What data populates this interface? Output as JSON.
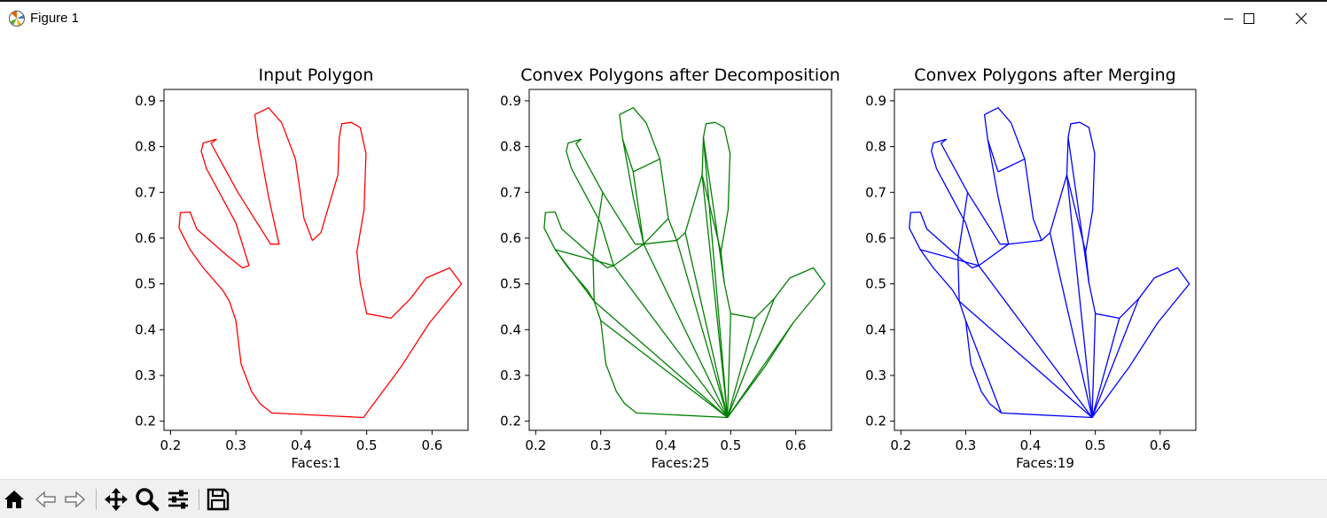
{
  "window": {
    "title": "Figure 1"
  },
  "icons": {
    "app": "matplotlib-icon",
    "minimize": "minimize-icon",
    "maximize": "maximize-icon",
    "close": "close-icon",
    "home": "home-icon",
    "back": "back-arrow-icon",
    "forward": "forward-arrow-icon",
    "pan": "pan-icon",
    "zoom": "zoom-icon",
    "configure": "configure-subplots-icon",
    "save": "save-icon"
  },
  "chart_data": [
    {
      "type": "polygon",
      "title": "Input Polygon",
      "xlabel": "Faces:1",
      "xlim": [
        0.19,
        0.655
      ],
      "ylim": [
        0.18,
        0.925
      ],
      "xticks": [
        "0.2",
        "0.3",
        "0.4",
        "0.5",
        "0.6"
      ],
      "yticks": [
        "0.2",
        "0.3",
        "0.4",
        "0.5",
        "0.6",
        "0.7",
        "0.8",
        "0.9"
      ],
      "color": "#ff0000",
      "outline": [
        [
          0.355,
          0.218
        ],
        [
          0.495,
          0.208
        ],
        [
          0.553,
          0.32
        ],
        [
          0.596,
          0.415
        ],
        [
          0.645,
          0.5
        ],
        [
          0.627,
          0.535
        ],
        [
          0.591,
          0.513
        ],
        [
          0.567,
          0.468
        ],
        [
          0.537,
          0.425
        ],
        [
          0.5,
          0.435
        ],
        [
          0.49,
          0.503
        ],
        [
          0.485,
          0.57
        ],
        [
          0.496,
          0.662
        ],
        [
          0.499,
          0.785
        ],
        [
          0.49,
          0.842
        ],
        [
          0.476,
          0.853
        ],
        [
          0.462,
          0.85
        ],
        [
          0.458,
          0.82
        ],
        [
          0.456,
          0.738
        ],
        [
          0.43,
          0.612
        ],
        [
          0.417,
          0.595
        ],
        [
          0.404,
          0.643
        ],
        [
          0.391,
          0.773
        ],
        [
          0.37,
          0.852
        ],
        [
          0.35,
          0.885
        ],
        [
          0.329,
          0.87
        ],
        [
          0.334,
          0.815
        ],
        [
          0.35,
          0.69
        ],
        [
          0.366,
          0.587
        ],
        [
          0.353,
          0.587
        ],
        [
          0.303,
          0.7
        ],
        [
          0.262,
          0.807
        ],
        [
          0.27,
          0.816
        ],
        [
          0.25,
          0.808
        ],
        [
          0.247,
          0.79
        ],
        [
          0.255,
          0.752
        ],
        [
          0.3,
          0.633
        ],
        [
          0.32,
          0.54
        ],
        [
          0.31,
          0.535
        ],
        [
          0.288,
          0.56
        ],
        [
          0.24,
          0.62
        ],
        [
          0.23,
          0.657
        ],
        [
          0.215,
          0.656
        ],
        [
          0.213,
          0.622
        ],
        [
          0.23,
          0.575
        ],
        [
          0.25,
          0.535
        ],
        [
          0.28,
          0.486
        ],
        [
          0.29,
          0.462
        ],
        [
          0.3,
          0.42
        ],
        [
          0.308,
          0.325
        ],
        [
          0.324,
          0.265
        ],
        [
          0.337,
          0.238
        ]
      ],
      "edges": []
    },
    {
      "type": "polygon",
      "title": "Convex Polygons after Decomposition",
      "xlabel": "Faces:25",
      "xlim": [
        0.19,
        0.655
      ],
      "ylim": [
        0.18,
        0.925
      ],
      "xticks": [
        "0.2",
        "0.3",
        "0.4",
        "0.5",
        "0.6"
      ],
      "yticks": [
        "0.2",
        "0.3",
        "0.4",
        "0.5",
        "0.6",
        "0.7",
        "0.8",
        "0.9"
      ],
      "color": "#008000",
      "outline": [
        [
          0.355,
          0.218
        ],
        [
          0.495,
          0.208
        ],
        [
          0.553,
          0.32
        ],
        [
          0.596,
          0.415
        ],
        [
          0.645,
          0.5
        ],
        [
          0.627,
          0.535
        ],
        [
          0.591,
          0.513
        ],
        [
          0.567,
          0.468
        ],
        [
          0.537,
          0.425
        ],
        [
          0.5,
          0.435
        ],
        [
          0.49,
          0.503
        ],
        [
          0.485,
          0.57
        ],
        [
          0.496,
          0.662
        ],
        [
          0.499,
          0.785
        ],
        [
          0.49,
          0.842
        ],
        [
          0.476,
          0.853
        ],
        [
          0.462,
          0.85
        ],
        [
          0.458,
          0.82
        ],
        [
          0.456,
          0.738
        ],
        [
          0.43,
          0.612
        ],
        [
          0.417,
          0.595
        ],
        [
          0.404,
          0.643
        ],
        [
          0.391,
          0.773
        ],
        [
          0.37,
          0.852
        ],
        [
          0.35,
          0.885
        ],
        [
          0.329,
          0.87
        ],
        [
          0.334,
          0.815
        ],
        [
          0.35,
          0.69
        ],
        [
          0.366,
          0.587
        ],
        [
          0.353,
          0.587
        ],
        [
          0.303,
          0.7
        ],
        [
          0.262,
          0.807
        ],
        [
          0.27,
          0.816
        ],
        [
          0.25,
          0.808
        ],
        [
          0.247,
          0.79
        ],
        [
          0.255,
          0.752
        ],
        [
          0.3,
          0.633
        ],
        [
          0.32,
          0.54
        ],
        [
          0.31,
          0.535
        ],
        [
          0.288,
          0.56
        ],
        [
          0.24,
          0.62
        ],
        [
          0.23,
          0.657
        ],
        [
          0.215,
          0.656
        ],
        [
          0.213,
          0.622
        ],
        [
          0.23,
          0.575
        ],
        [
          0.25,
          0.535
        ],
        [
          0.28,
          0.486
        ],
        [
          0.29,
          0.462
        ],
        [
          0.3,
          0.42
        ],
        [
          0.308,
          0.325
        ],
        [
          0.324,
          0.265
        ],
        [
          0.337,
          0.238
        ]
      ],
      "edges": [
        [
          [
            0.29,
            0.462
          ],
          [
            0.495,
            0.208
          ]
        ],
        [
          [
            0.3,
            0.42
          ],
          [
            0.495,
            0.208
          ]
        ],
        [
          [
            0.32,
            0.54
          ],
          [
            0.495,
            0.208
          ]
        ],
        [
          [
            0.366,
            0.587
          ],
          [
            0.495,
            0.208
          ]
        ],
        [
          [
            0.417,
            0.595
          ],
          [
            0.495,
            0.208
          ]
        ],
        [
          [
            0.43,
            0.612
          ],
          [
            0.495,
            0.208
          ]
        ],
        [
          [
            0.456,
            0.738
          ],
          [
            0.495,
            0.208
          ]
        ],
        [
          [
            0.458,
            0.82
          ],
          [
            0.495,
            0.208
          ]
        ],
        [
          [
            0.5,
            0.435
          ],
          [
            0.495,
            0.208
          ]
        ],
        [
          [
            0.537,
            0.425
          ],
          [
            0.495,
            0.208
          ]
        ],
        [
          [
            0.567,
            0.468
          ],
          [
            0.495,
            0.208
          ]
        ],
        [
          [
            0.596,
            0.415
          ],
          [
            0.495,
            0.208
          ]
        ],
        [
          [
            0.303,
            0.7
          ],
          [
            0.288,
            0.56
          ]
        ],
        [
          [
            0.288,
            0.56
          ],
          [
            0.29,
            0.462
          ]
        ],
        [
          [
            0.23,
            0.575
          ],
          [
            0.29,
            0.462
          ]
        ],
        [
          [
            0.23,
            0.575
          ],
          [
            0.32,
            0.54
          ]
        ],
        [
          [
            0.32,
            0.54
          ],
          [
            0.366,
            0.587
          ]
        ],
        [
          [
            0.366,
            0.587
          ],
          [
            0.417,
            0.595
          ]
        ],
        [
          [
            0.334,
            0.815
          ],
          [
            0.35,
            0.745
          ]
        ],
        [
          [
            0.35,
            0.745
          ],
          [
            0.391,
            0.773
          ]
        ],
        [
          [
            0.458,
            0.82
          ],
          [
            0.49,
            0.503
          ]
        ],
        [
          [
            0.456,
            0.738
          ],
          [
            0.485,
            0.57
          ]
        ],
        [
          [
            0.404,
            0.643
          ],
          [
            0.366,
            0.587
          ]
        ],
        [
          [
            0.35,
            0.745
          ],
          [
            0.366,
            0.587
          ]
        ]
      ]
    },
    {
      "type": "polygon",
      "title": "Convex Polygons after Merging",
      "xlabel": "Faces:19",
      "xlim": [
        0.19,
        0.655
      ],
      "ylim": [
        0.18,
        0.925
      ],
      "xticks": [
        "0.2",
        "0.3",
        "0.4",
        "0.5",
        "0.6"
      ],
      "yticks": [
        "0.2",
        "0.3",
        "0.4",
        "0.5",
        "0.6",
        "0.7",
        "0.8",
        "0.9"
      ],
      "color": "#0000ff",
      "outline": [
        [
          0.355,
          0.218
        ],
        [
          0.495,
          0.208
        ],
        [
          0.553,
          0.32
        ],
        [
          0.596,
          0.415
        ],
        [
          0.645,
          0.5
        ],
        [
          0.627,
          0.535
        ],
        [
          0.591,
          0.513
        ],
        [
          0.567,
          0.468
        ],
        [
          0.537,
          0.425
        ],
        [
          0.5,
          0.435
        ],
        [
          0.49,
          0.503
        ],
        [
          0.485,
          0.57
        ],
        [
          0.496,
          0.662
        ],
        [
          0.499,
          0.785
        ],
        [
          0.49,
          0.842
        ],
        [
          0.476,
          0.853
        ],
        [
          0.462,
          0.85
        ],
        [
          0.458,
          0.82
        ],
        [
          0.456,
          0.738
        ],
        [
          0.43,
          0.612
        ],
        [
          0.417,
          0.595
        ],
        [
          0.404,
          0.643
        ],
        [
          0.391,
          0.773
        ],
        [
          0.37,
          0.852
        ],
        [
          0.35,
          0.885
        ],
        [
          0.329,
          0.87
        ],
        [
          0.334,
          0.815
        ],
        [
          0.35,
          0.69
        ],
        [
          0.366,
          0.587
        ],
        [
          0.353,
          0.587
        ],
        [
          0.303,
          0.7
        ],
        [
          0.262,
          0.807
        ],
        [
          0.27,
          0.816
        ],
        [
          0.25,
          0.808
        ],
        [
          0.247,
          0.79
        ],
        [
          0.255,
          0.752
        ],
        [
          0.3,
          0.633
        ],
        [
          0.32,
          0.54
        ],
        [
          0.31,
          0.535
        ],
        [
          0.288,
          0.56
        ],
        [
          0.24,
          0.62
        ],
        [
          0.23,
          0.657
        ],
        [
          0.215,
          0.656
        ],
        [
          0.213,
          0.622
        ],
        [
          0.23,
          0.575
        ],
        [
          0.25,
          0.535
        ],
        [
          0.28,
          0.486
        ],
        [
          0.29,
          0.462
        ],
        [
          0.3,
          0.42
        ],
        [
          0.308,
          0.325
        ],
        [
          0.324,
          0.265
        ],
        [
          0.337,
          0.238
        ]
      ],
      "edges": [
        [
          [
            0.29,
            0.462
          ],
          [
            0.495,
            0.208
          ]
        ],
        [
          [
            0.3,
            0.42
          ],
          [
            0.355,
            0.218
          ]
        ],
        [
          [
            0.32,
            0.54
          ],
          [
            0.495,
            0.208
          ]
        ],
        [
          [
            0.43,
            0.612
          ],
          [
            0.495,
            0.208
          ]
        ],
        [
          [
            0.456,
            0.738
          ],
          [
            0.495,
            0.208
          ]
        ],
        [
          [
            0.5,
            0.435
          ],
          [
            0.495,
            0.208
          ]
        ],
        [
          [
            0.537,
            0.425
          ],
          [
            0.495,
            0.208
          ]
        ],
        [
          [
            0.567,
            0.468
          ],
          [
            0.495,
            0.208
          ]
        ],
        [
          [
            0.303,
            0.7
          ],
          [
            0.288,
            0.56
          ]
        ],
        [
          [
            0.288,
            0.56
          ],
          [
            0.29,
            0.462
          ]
        ],
        [
          [
            0.23,
            0.575
          ],
          [
            0.32,
            0.54
          ]
        ],
        [
          [
            0.32,
            0.54
          ],
          [
            0.366,
            0.587
          ]
        ],
        [
          [
            0.366,
            0.587
          ],
          [
            0.417,
            0.595
          ]
        ],
        [
          [
            0.334,
            0.815
          ],
          [
            0.35,
            0.745
          ]
        ],
        [
          [
            0.35,
            0.745
          ],
          [
            0.391,
            0.773
          ]
        ],
        [
          [
            0.458,
            0.82
          ],
          [
            0.49,
            0.503
          ]
        ],
        [
          [
            0.456,
            0.738
          ],
          [
            0.485,
            0.57
          ]
        ]
      ]
    }
  ]
}
